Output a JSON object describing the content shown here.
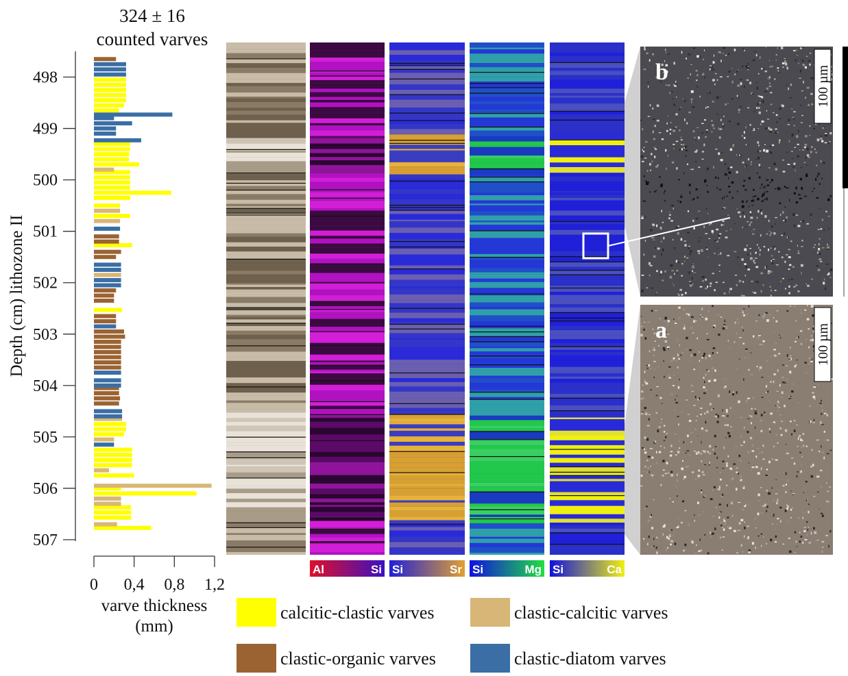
{
  "chart_data": {
    "type": "hbar",
    "title": [
      "324 ± 16",
      "counted varves"
    ],
    "y_label": "Depth (cm) lithozone II",
    "x_label": [
      "varve thickness",
      "(mm)"
    ],
    "xlim": [
      0,
      1.2
    ],
    "xticks": [
      0,
      {
        "value": 0.4,
        "label": "0,4"
      },
      {
        "value": 0.8,
        "label": "0,8"
      },
      {
        "value": 1.2,
        "label": "1,2"
      }
    ],
    "ylim": [
      497.5,
      507
    ],
    "yticks": [
      498,
      499,
      500,
      501,
      502,
      503,
      504,
      505,
      506,
      507
    ],
    "series": [
      {
        "name": "calcitic-clastic varves",
        "color": "#ffff00",
        "y": [
          498.05,
          498.15,
          498.25,
          498.35,
          498.45,
          498.55,
          498.65,
          499.3,
          499.4,
          499.5,
          499.6,
          499.7,
          499.85,
          499.95,
          500.05,
          500.15,
          500.25,
          500.35,
          500.5,
          500.7,
          501.27,
          502.53,
          504.75,
          504.85,
          504.95,
          505.25,
          505.35,
          505.45,
          505.55,
          505.75,
          506.0,
          506.1,
          506.37,
          506.47,
          506.57,
          506.77
        ],
        "values": [
          0.32,
          0.32,
          0.32,
          0.32,
          0.32,
          0.3,
          0.25,
          0.36,
          0.36,
          0.35,
          0.35,
          0.45,
          0.36,
          0.36,
          0.36,
          0.36,
          0.77,
          0.36,
          0.26,
          0.36,
          0.38,
          0.28,
          0.32,
          0.32,
          0.3,
          0.38,
          0.38,
          0.38,
          0.38,
          0.4,
          0.27,
          1.02,
          0.37,
          0.37,
          0.37,
          0.57
        ]
      },
      {
        "name": "clastic-calcitic varves",
        "color": "#d8b677",
        "y": [
          499.8,
          500.6,
          500.8,
          501.85,
          504.65,
          505.05,
          505.65,
          505.95,
          506.2,
          506.3,
          506.7
        ],
        "values": [
          0.2,
          0.26,
          0.26,
          0.27,
          0.28,
          0.2,
          0.15,
          1.17,
          0.27,
          0.27,
          0.23
        ]
      },
      {
        "name": "clastic-organic varves",
        "color": "#9b6332",
        "y": [
          497.65,
          501.1,
          501.2,
          501.4,
          501.5,
          502.15,
          502.25,
          502.35,
          502.65,
          502.75,
          502.95,
          503.05,
          503.15,
          503.25,
          503.35,
          503.45,
          503.55,
          503.65,
          504.05,
          504.15,
          504.25,
          504.35
        ],
        "values": [
          0.22,
          0.25,
          0.25,
          0.27,
          0.22,
          0.22,
          0.2,
          0.2,
          0.22,
          0.22,
          0.3,
          0.31,
          0.27,
          0.27,
          0.27,
          0.27,
          0.27,
          0.27,
          0.25,
          0.25,
          0.26,
          0.25
        ]
      },
      {
        "name": "clastic-diatom varves",
        "color": "#3a6ea5",
        "y": [
          497.75,
          497.85,
          497.95,
          498.73,
          498.8,
          498.9,
          499.0,
          499.1,
          499.23,
          500.95,
          501.65,
          501.75,
          501.95,
          502.05,
          502.85,
          503.75,
          503.9,
          504.0,
          504.5,
          504.6,
          505.15
        ],
        "values": [
          0.32,
          0.32,
          0.32,
          0.78,
          0.2,
          0.38,
          0.22,
          0.22,
          0.47,
          0.26,
          0.27,
          0.27,
          0.27,
          0.27,
          0.22,
          0.27,
          0.27,
          0.27,
          0.28,
          0.28,
          0.2
        ]
      }
    ]
  },
  "maps": [
    {
      "left": "Al",
      "right": "Si"
    },
    {
      "left": "Si",
      "right": "Sr"
    },
    {
      "left": "Si",
      "right": "Mg"
    },
    {
      "left": "Si",
      "right": "Ca"
    }
  ],
  "micrographs": [
    {
      "label": "b",
      "scale": "100 µm"
    },
    {
      "label": "a",
      "scale": "100 µm"
    }
  ]
}
